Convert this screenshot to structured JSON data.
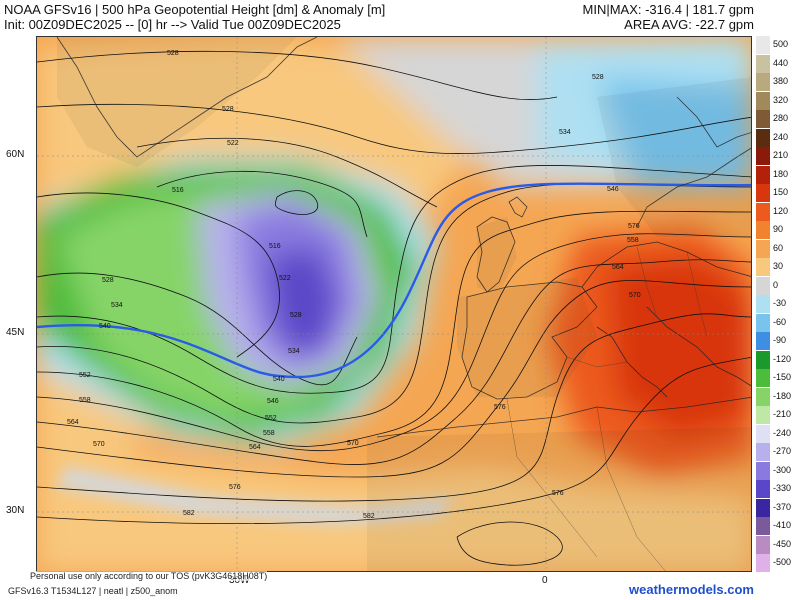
{
  "header": {
    "title_line1": "NOAA GFSv16 | 500 hPa Geopotential Height [dm] & Anomaly [m]",
    "title_line2": "Init: 00Z09DEC2025 -- [0] hr --> Valid Tue 00Z09DEC2025",
    "minmax": "MIN|MAX: -316.4 | 181.7 gpm",
    "area_avg": "AREA AVG: -22.7 gpm"
  },
  "axes": {
    "lat_labels": [
      "60N",
      "45N",
      "30N"
    ],
    "lon_labels": [
      "30W",
      "0"
    ]
  },
  "legend": {
    "labels": [
      "500",
      "440",
      "380",
      "320",
      "280",
      "240",
      "210",
      "180",
      "150",
      "120",
      "90",
      "60",
      "30",
      "0",
      "-30",
      "-60",
      "-90",
      "-120",
      "-150",
      "-180",
      "-210",
      "-240",
      "-270",
      "-300",
      "-330",
      "-370",
      "-410",
      "-450",
      "-500"
    ],
    "colors": [
      "#e8e8e8",
      "#c9c2a0",
      "#b8aa7e",
      "#a08a5c",
      "#7e5a36",
      "#5a2c10",
      "#8a1a0a",
      "#b3210a",
      "#d8360e",
      "#ec5a1e",
      "#f1832e",
      "#f5a652",
      "#f8c87e",
      "#d6d6d6",
      "#aee0f2",
      "#78c4ec",
      "#3e8ee4",
      "#1a9a2a",
      "#4cbc3a",
      "#86d468",
      "#bfe8a6",
      "#e0e0f4",
      "#b8b0ec",
      "#8a7ae0",
      "#5a46c8",
      "#3a26a0",
      "#7a5a9a",
      "#b88cc0",
      "#e0b0e8"
    ]
  },
  "footer": {
    "note": "Personal use only according to our TOS (pvK3G4618H08T)",
    "model_id": "GFSv16.3 T1534L127 | neatl | z500_anom",
    "brand": "weathermodels.com"
  },
  "contour_labels": [
    "528",
    "528",
    "528",
    "522",
    "534",
    "546",
    "516",
    "516",
    "522",
    "528",
    "534",
    "528",
    "534",
    "540",
    "540",
    "546",
    "552",
    "558",
    "564",
    "570",
    "576",
    "582",
    "576",
    "552",
    "558",
    "564",
    "570",
    "576",
    "582",
    "558",
    "564",
    "570",
    "576",
    "546"
  ]
}
